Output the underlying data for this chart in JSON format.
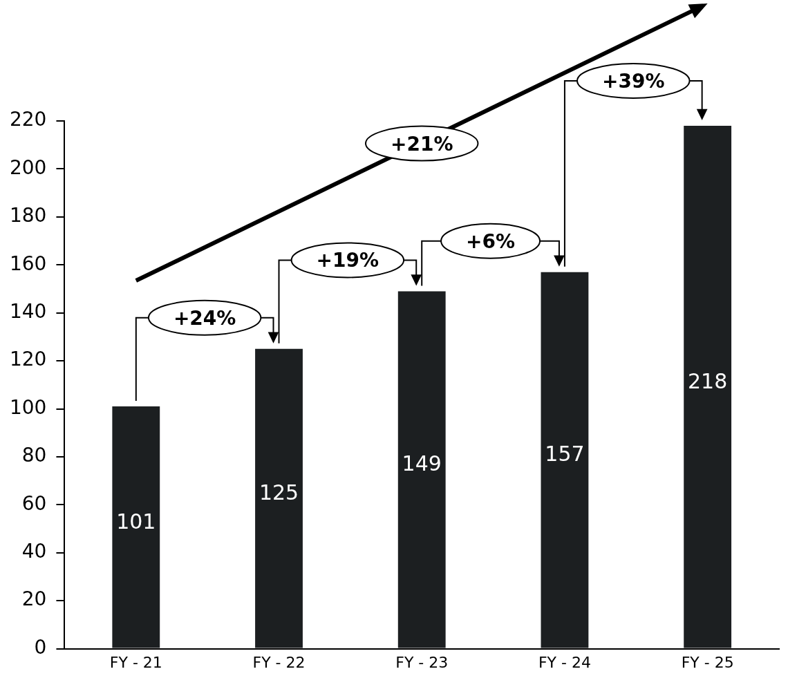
{
  "chart_data": {
    "type": "bar",
    "categories": [
      "FY - 21",
      "FY - 22",
      "FY - 23",
      "FY - 24",
      "FY - 25"
    ],
    "values": [
      101,
      125,
      149,
      157,
      218
    ],
    "color": "#1c1f21",
    "ylim": [
      0,
      220
    ],
    "yticks": [
      0,
      20,
      40,
      60,
      80,
      100,
      120,
      140,
      160,
      180,
      200,
      220
    ],
    "grid": false,
    "data_labels": true,
    "annotations": [
      "+24%",
      "+19%",
      "+6%",
      "+39%",
      "+21%"
    ]
  }
}
